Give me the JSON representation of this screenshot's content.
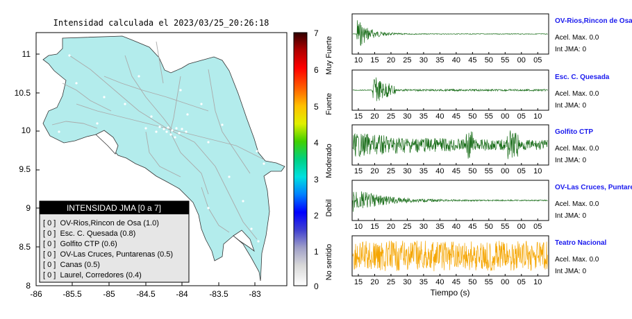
{
  "map": {
    "title": "Intensidad calculada el 2023/03/25_20:26:18",
    "x_ticks": [
      "-86",
      "-85.5",
      "-85",
      "-84.5",
      "-84",
      "-83.5",
      "-83"
    ],
    "y_ticks": [
      "11",
      "10.5",
      "10",
      "9.5",
      "9",
      "8.5",
      "8"
    ],
    "colors": {
      "land": "#b3ecec",
      "roads": "#aaaaaa",
      "stations": "#ffffff"
    },
    "legend": {
      "header": "INTENSIDAD JMA [0 a 7]",
      "items": [
        "[ 0 ]  OV-Rios,Rincon de Osa (1.0)",
        "[ 0 ]  Esc. C. Quesada (0.8)",
        "[ 0 ]  Golfito CTP (0.6)",
        "[ 0 ]  OV-Las Cruces, Puntarenas (0.5)",
        "[ 0 ]  Canas (0.5)",
        "[ 0 ]  Laurel, Corredores (0.4)"
      ]
    }
  },
  "colorbar": {
    "ticks": [
      "7",
      "6",
      "5",
      "4",
      "3",
      "2",
      "1",
      "0"
    ],
    "labels": [
      "Muy Fuerte",
      "Fuerte",
      "Moderado",
      "Debil",
      "No sentido"
    ]
  },
  "seismograms": {
    "xlabel": "Tiempo (s)",
    "panels": [
      {
        "station": "OV-Rios,Rincon de Osa",
        "accel": "Acel. Max. 0.0",
        "jma": "Int JMA: 0",
        "ticks": [
          "10",
          "15",
          "20",
          "25",
          "30",
          "35",
          "40",
          "45",
          "50",
          "55",
          "00",
          "05"
        ],
        "color": "#1a6e1a"
      },
      {
        "station": "Esc. C. Quesada",
        "accel": "Acel. Max. 0.0",
        "jma": "Int JMA: 0",
        "ticks": [
          "15",
          "20",
          "25",
          "30",
          "35",
          "40",
          "45",
          "50",
          "55",
          "00",
          "05",
          "10"
        ],
        "color": "#1a6e1a"
      },
      {
        "station": "Golfito CTP",
        "accel": "Acel. Max. 0.0",
        "jma": "Int JMA: 0",
        "ticks": [
          "15",
          "20",
          "25",
          "30",
          "35",
          "40",
          "45",
          "50",
          "55",
          "00",
          "05",
          "10"
        ],
        "color": "#1a6e1a"
      },
      {
        "station": "OV-Las Cruces, Puntarenas",
        "accel": "Acel. Max. 0.0",
        "jma": "Int JMA: 0",
        "ticks": [
          "10",
          "15",
          "20",
          "25",
          "30",
          "35",
          "40",
          "45",
          "50",
          "55",
          "00",
          "05"
        ],
        "color": "#1a6e1a"
      },
      {
        "station": "Teatro Nacional",
        "accel": "Acel. Max. 0.0",
        "jma": "Int JMA: 0",
        "ticks": [
          "15",
          "20",
          "25",
          "30",
          "35",
          "40",
          "45",
          "50",
          "55",
          "00",
          "05",
          "10"
        ],
        "color": "#f5a500"
      }
    ]
  }
}
